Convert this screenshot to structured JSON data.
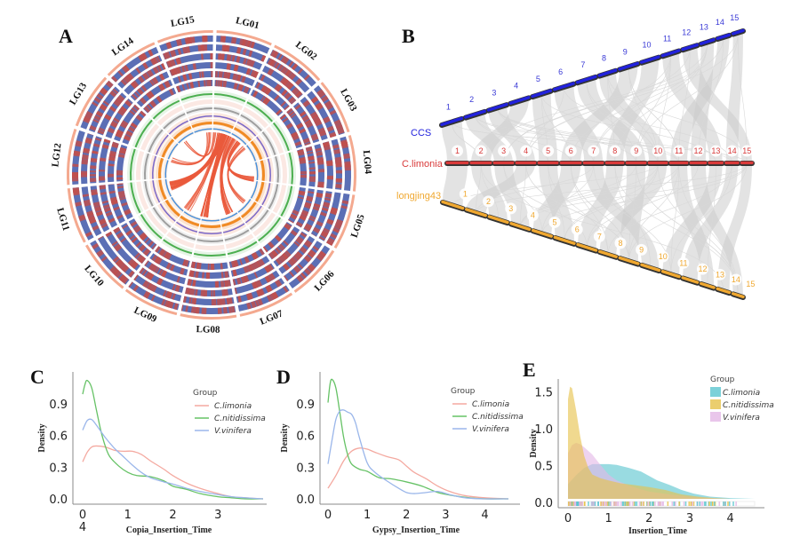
{
  "panels": {
    "A": {
      "letter": "A"
    },
    "B": {
      "letter": "B"
    },
    "C": {
      "letter": "C"
    },
    "D": {
      "letter": "D"
    },
    "E": {
      "letter": "E"
    }
  },
  "chart_data": [
    {
      "id": "A",
      "type": "circos",
      "chromosomes": [
        "LG01",
        "LG02",
        "LG03",
        "LG04",
        "LG05",
        "LG06",
        "LG07",
        "LG08",
        "LG09",
        "LG10",
        "LG11",
        "LG12",
        "LG13",
        "LG14",
        "LG15"
      ],
      "track_colors": {
        "outer_band": "#f4a98f",
        "heat_tracks": [
          "#5b6fb5",
          "#c0504d"
        ],
        "green_line": "#4caf50",
        "gray_line": "#9e9e9e",
        "purple_line": "#7b68c8",
        "orange_bar": "#f08a24",
        "blue_line": "#4a90d9",
        "links": "#ea5a3c"
      }
    },
    {
      "id": "B",
      "type": "synteny",
      "genomes": [
        {
          "name": "CCS",
          "color": "#2222dd",
          "chromosomes": [
            "1",
            "2",
            "3",
            "4",
            "5",
            "6",
            "7",
            "8",
            "9",
            "10",
            "11",
            "12",
            "13",
            "14",
            "15"
          ]
        },
        {
          "name": "C.limonia",
          "color": "#d93a3a",
          "chromosomes": [
            "1",
            "2",
            "3",
            "4",
            "5",
            "6",
            "7",
            "8",
            "9",
            "10",
            "11",
            "12",
            "13",
            "14",
            "15"
          ]
        },
        {
          "name": "longjing43",
          "color": "#f0a830",
          "chromosomes": [
            "1",
            "2",
            "3",
            "4",
            "5",
            "6",
            "7",
            "8",
            "9",
            "10",
            "11",
            "12",
            "13",
            "14",
            "15"
          ]
        }
      ],
      "link_color": "#cccccc"
    },
    {
      "id": "C",
      "type": "line",
      "title": "",
      "xlabel": "Copia_Insertion_Time",
      "ylabel": "Density",
      "xlim": [
        0,
        4
      ],
      "ylim": [
        0,
        1.15
      ],
      "xticks": [
        "0",
        "1",
        "2",
        "3"
      ],
      "xtick_extra": "4",
      "yticks": [
        "0.0",
        "0.3",
        "0.6",
        "0.9"
      ],
      "legend_title": "Group",
      "legend_position": "top-right",
      "series": [
        {
          "name": "C.limonia",
          "color": "#f4a9a0",
          "x": [
            0,
            0.1,
            0.2,
            0.3,
            0.5,
            0.7,
            0.9,
            1.1,
            1.3,
            1.5,
            1.8,
            2.0,
            2.3,
            2.6,
            3.0,
            3.3,
            3.6,
            4.0
          ],
          "y": [
            0.35,
            0.44,
            0.49,
            0.5,
            0.49,
            0.46,
            0.45,
            0.45,
            0.42,
            0.36,
            0.28,
            0.22,
            0.15,
            0.1,
            0.05,
            0.02,
            0.01,
            0.0
          ]
        },
        {
          "name": "C.nitidissima",
          "color": "#66c266",
          "x": [
            0,
            0.05,
            0.1,
            0.2,
            0.3,
            0.4,
            0.5,
            0.6,
            0.8,
            1.0,
            1.2,
            1.5,
            1.8,
            2.0,
            2.3,
            2.6,
            3.0,
            3.3,
            3.6,
            4.0
          ],
          "y": [
            0.99,
            1.08,
            1.12,
            1.05,
            0.85,
            0.65,
            0.5,
            0.4,
            0.31,
            0.25,
            0.22,
            0.21,
            0.17,
            0.12,
            0.09,
            0.05,
            0.02,
            0.01,
            0.0,
            0.0
          ]
        },
        {
          "name": "V.vinifera",
          "color": "#9ab6ea",
          "x": [
            0,
            0.1,
            0.2,
            0.3,
            0.5,
            0.7,
            0.9,
            1.1,
            1.3,
            1.5,
            1.8,
            2.0,
            2.3,
            2.6,
            3.0,
            3.3,
            3.6,
            4.0
          ],
          "y": [
            0.65,
            0.74,
            0.75,
            0.7,
            0.58,
            0.48,
            0.4,
            0.32,
            0.25,
            0.2,
            0.16,
            0.14,
            0.1,
            0.07,
            0.04,
            0.02,
            0.01,
            0.0
          ]
        }
      ]
    },
    {
      "id": "D",
      "type": "line",
      "title": "",
      "xlabel": "Gypsy_Insertion_Time",
      "ylabel": "Density",
      "xlim": [
        0,
        4.6
      ],
      "ylim": [
        0,
        1.15
      ],
      "xticks": [
        "0",
        "1",
        "2",
        "3",
        "4"
      ],
      "yticks": [
        "0.0",
        "0.3",
        "0.6",
        "0.9"
      ],
      "legend_title": "Group",
      "legend_position": "top-right",
      "series": [
        {
          "name": "C.limonia",
          "color": "#f4a9a0",
          "x": [
            0,
            0.2,
            0.4,
            0.6,
            0.8,
            1.0,
            1.2,
            1.5,
            1.8,
            2.0,
            2.2,
            2.5,
            2.8,
            3.1,
            3.5,
            4.0,
            4.6
          ],
          "y": [
            0.1,
            0.22,
            0.36,
            0.45,
            0.48,
            0.47,
            0.44,
            0.4,
            0.37,
            0.31,
            0.25,
            0.19,
            0.12,
            0.07,
            0.03,
            0.01,
            0.0
          ]
        },
        {
          "name": "C.nitidissima",
          "color": "#66c266",
          "x": [
            0,
            0.05,
            0.1,
            0.2,
            0.3,
            0.4,
            0.5,
            0.6,
            0.8,
            1.0,
            1.3,
            1.6,
            2.0,
            2.4,
            2.8,
            3.2,
            3.6,
            4.0,
            4.6
          ],
          "y": [
            0.91,
            1.08,
            1.13,
            1.05,
            0.82,
            0.58,
            0.42,
            0.33,
            0.28,
            0.26,
            0.2,
            0.19,
            0.16,
            0.12,
            0.06,
            0.03,
            0.01,
            0.0,
            0.0
          ]
        },
        {
          "name": "V.vinifera",
          "color": "#9ab6ea",
          "x": [
            0,
            0.1,
            0.2,
            0.3,
            0.4,
            0.5,
            0.6,
            0.7,
            0.8,
            1.0,
            1.2,
            1.5,
            1.8,
            2.0,
            2.2,
            2.5,
            2.8,
            3.1,
            3.5,
            4.0,
            4.6
          ],
          "y": [
            0.33,
            0.55,
            0.75,
            0.83,
            0.84,
            0.82,
            0.8,
            0.72,
            0.58,
            0.34,
            0.25,
            0.17,
            0.1,
            0.06,
            0.05,
            0.06,
            0.07,
            0.04,
            0.01,
            0.0,
            0.0
          ]
        }
      ]
    },
    {
      "id": "E",
      "type": "area",
      "title": "",
      "xlabel": "Insertion_Time",
      "ylabel": "Density",
      "xlim": [
        0,
        4.6
      ],
      "ylim": [
        0,
        1.6
      ],
      "xticks": [
        "0",
        "1",
        "2",
        "3",
        "4"
      ],
      "yticks": [
        "0.0",
        "0.5",
        "1.0",
        "1.5"
      ],
      "legend_title": "Group",
      "legend_position": "top-right",
      "rug": true,
      "series": [
        {
          "name": "C.limonia",
          "color": "#5bc5cf",
          "x": [
            0,
            0.2,
            0.4,
            0.6,
            0.8,
            1.0,
            1.2,
            1.5,
            1.8,
            2.0,
            2.2,
            2.5,
            2.8,
            3.1,
            3.5,
            4.0,
            4.6
          ],
          "y": [
            0.2,
            0.32,
            0.42,
            0.47,
            0.47,
            0.47,
            0.46,
            0.42,
            0.37,
            0.31,
            0.25,
            0.19,
            0.12,
            0.07,
            0.03,
            0.01,
            0.0
          ]
        },
        {
          "name": "C.nitidissima",
          "color": "#e6c24a",
          "x": [
            0,
            0.05,
            0.1,
            0.2,
            0.3,
            0.4,
            0.5,
            0.6,
            0.8,
            1.0,
            1.3,
            1.6,
            2.0,
            2.4,
            2.8,
            3.2,
            3.6,
            4.0,
            4.6
          ],
          "y": [
            1.35,
            1.52,
            1.5,
            1.2,
            0.85,
            0.58,
            0.42,
            0.33,
            0.28,
            0.25,
            0.21,
            0.19,
            0.16,
            0.12,
            0.06,
            0.03,
            0.01,
            0.0,
            0.0
          ]
        },
        {
          "name": "V.vinifera",
          "color": "#e3b8e6",
          "x": [
            0,
            0.1,
            0.2,
            0.3,
            0.4,
            0.5,
            0.6,
            0.7,
            0.8,
            1.0,
            1.2,
            1.5,
            1.8,
            2.0,
            2.5,
            3.0,
            3.5,
            4.0,
            4.6
          ],
          "y": [
            0.62,
            0.73,
            0.76,
            0.74,
            0.7,
            0.65,
            0.6,
            0.53,
            0.46,
            0.33,
            0.25,
            0.18,
            0.13,
            0.1,
            0.06,
            0.03,
            0.01,
            0.0,
            0.0
          ]
        }
      ]
    }
  ]
}
